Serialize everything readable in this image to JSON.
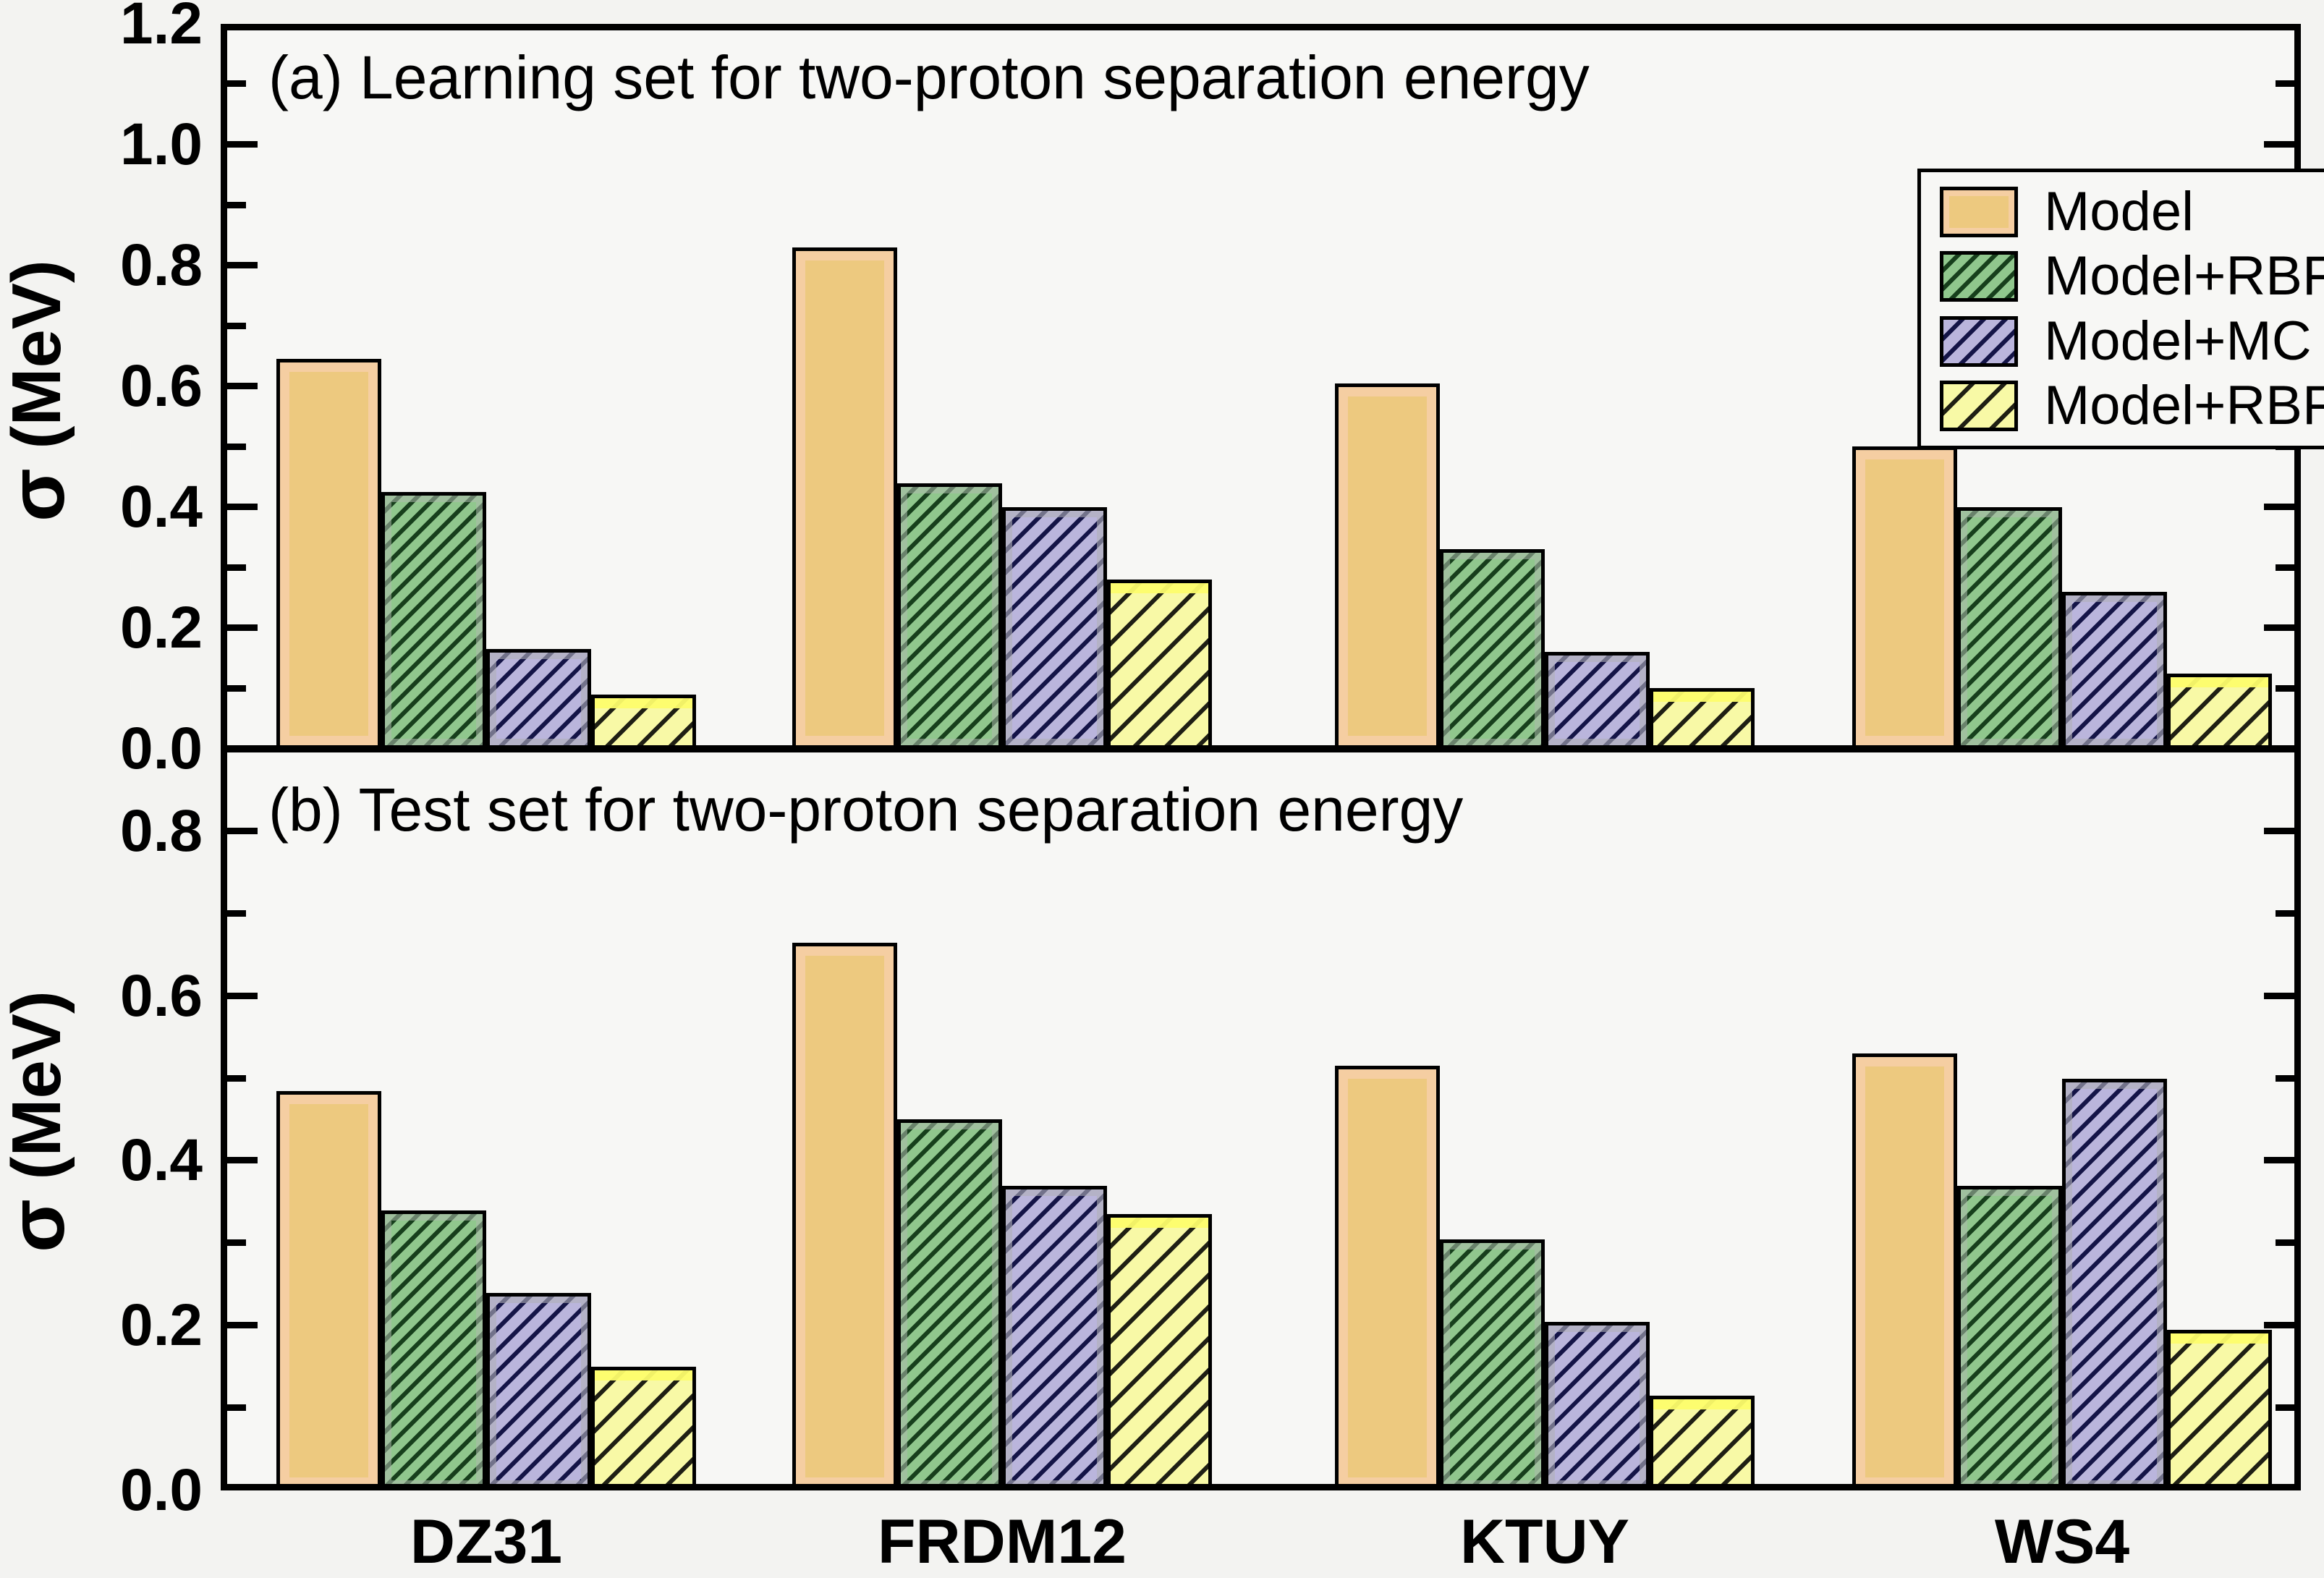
{
  "figure": {
    "y_axis_label_sigma": "σ",
    "y_axis_label_unit": " (MeV)"
  },
  "series_styles": [
    {
      "name": "Model",
      "fill": "#edc97f",
      "hatch": null,
      "hatch_period": 0,
      "hatch_line": 0,
      "highlight": "#f5cea2",
      "highlight_style": "ring"
    },
    {
      "name": "Model+RBF",
      "fill": "#90c78d",
      "hatch": "#173f1c",
      "hatch_period": 18,
      "hatch_line": 6,
      "highlight": "rgba(173,186,173,0.55)",
      "highlight_style": "ring-thin"
    },
    {
      "name": "Model+MC",
      "fill": "#bab5dc",
      "hatch": "#141447",
      "hatch_period": 21,
      "hatch_line": 6,
      "highlight": "rgba(176,176,184,0.6)",
      "highlight_style": "ring-thin"
    },
    {
      "name": "Model+RBFms",
      "fill": "#f8f9a6",
      "hatch": "#1f1f14",
      "hatch_period": 31,
      "hatch_line": 6,
      "highlight": "rgba(253,253,108,0.95)",
      "highlight_style": "top"
    }
  ],
  "legend": {
    "items": [
      "Model",
      "Model+RBF",
      "Model+MC",
      "Model+RBFms"
    ]
  },
  "chart_data": [
    {
      "type": "bar",
      "panel": "a",
      "title": "(a) Learning set for two-proton separation energy",
      "ylabel": "σ (MeV)",
      "categories": [
        "DZ31",
        "FRDM12",
        "KTUY",
        "WS4"
      ],
      "series": [
        {
          "name": "Model",
          "values": [
            0.645,
            0.83,
            0.605,
            0.5
          ]
        },
        {
          "name": "Model+RBF",
          "values": [
            0.425,
            0.44,
            0.33,
            0.4
          ]
        },
        {
          "name": "Model+MC",
          "values": [
            0.165,
            0.4,
            0.16,
            0.26
          ]
        },
        {
          "name": "Model+RBFms",
          "values": [
            0.09,
            0.28,
            0.1,
            0.125
          ]
        }
      ],
      "ylim": [
        0,
        1.2
      ],
      "yticks_major": [
        {
          "value": 1.2,
          "label": "1.2"
        },
        {
          "value": 1.0,
          "label": "1.0"
        },
        {
          "value": 0.8,
          "label": "0.8"
        },
        {
          "value": 0.6,
          "label": "0.6"
        },
        {
          "value": 0.4,
          "label": "0.4"
        },
        {
          "value": 0.2,
          "label": "0.2"
        },
        {
          "value": 0.0,
          "label": "0.0"
        }
      ],
      "yticks_minor": [
        1.1,
        0.9,
        0.7,
        0.5,
        0.3,
        0.1
      ],
      "grid": false,
      "legend_position": "upper right"
    },
    {
      "type": "bar",
      "panel": "b",
      "title": "(b) Test set for two-proton separation energy",
      "ylabel": "σ (MeV)",
      "categories": [
        "DZ31",
        "FRDM12",
        "KTUY",
        "WS4"
      ],
      "series": [
        {
          "name": "Model",
          "values": [
            0.485,
            0.665,
            0.515,
            0.53
          ]
        },
        {
          "name": "Model+RBF",
          "values": [
            0.34,
            0.45,
            0.305,
            0.37
          ]
        },
        {
          "name": "Model+MC",
          "values": [
            0.24,
            0.37,
            0.205,
            0.5
          ]
        },
        {
          "name": "Model+RBFms",
          "values": [
            0.15,
            0.335,
            0.115,
            0.195
          ]
        }
      ],
      "ylim": [
        0,
        0.9
      ],
      "yticks_major": [
        {
          "value": 0.8,
          "label": "0.8"
        },
        {
          "value": 0.6,
          "label": "0.6"
        },
        {
          "value": 0.4,
          "label": "0.4"
        },
        {
          "value": 0.2,
          "label": "0.2"
        },
        {
          "value": 0.0,
          "label": "0.0"
        }
      ],
      "yticks_minor": [
        0.7,
        0.5,
        0.3,
        0.1
      ],
      "grid": false
    }
  ]
}
